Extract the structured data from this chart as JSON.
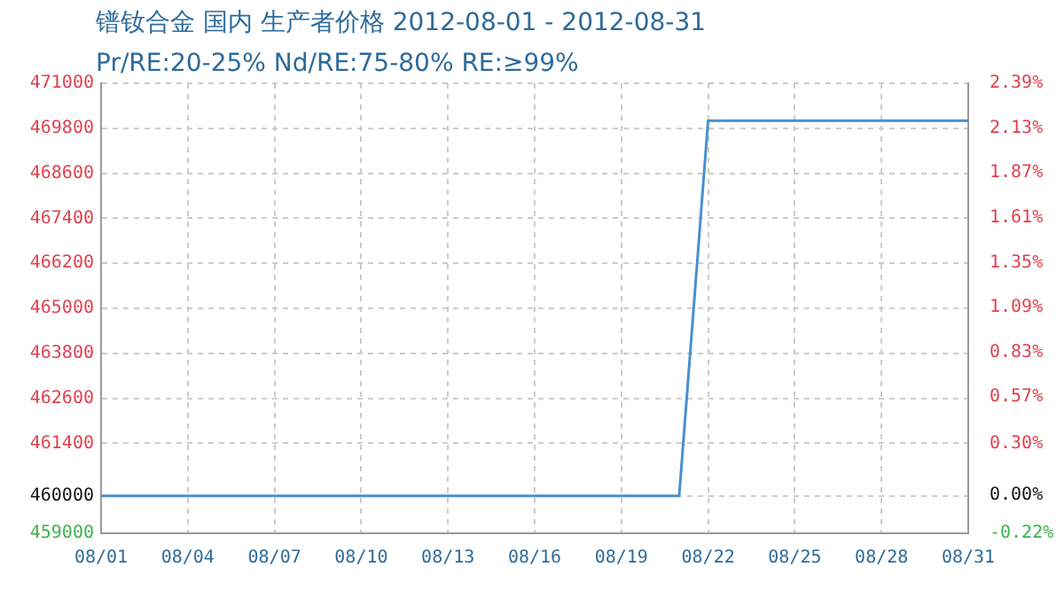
{
  "chart_data": {
    "type": "line",
    "title": "镨钕合金 国内 生产者价格 2012-08-01 - 2012-08-31",
    "subtitle": "Pr/RE:20-25% Nd/RE:75-80% RE:≥99%",
    "x": [
      "2012-08-01",
      "2012-08-21",
      "2012-08-22",
      "2012-08-31"
    ],
    "series": [
      {
        "color": "#4a8fd0",
        "values": [
          460000,
          460000,
          470000,
          470000
        ]
      }
    ],
    "xlim": [
      "2012-08-01",
      "2012-08-31"
    ],
    "xticks": [
      {
        "value": "2012-08-01",
        "label": "08/01"
      },
      {
        "value": "2012-08-04",
        "label": "08/04"
      },
      {
        "value": "2012-08-07",
        "label": "08/07"
      },
      {
        "value": "2012-08-10",
        "label": "08/10"
      },
      {
        "value": "2012-08-13",
        "label": "08/13"
      },
      {
        "value": "2012-08-16",
        "label": "08/16"
      },
      {
        "value": "2012-08-19",
        "label": "08/19"
      },
      {
        "value": "2012-08-22",
        "label": "08/22"
      },
      {
        "value": "2012-08-25",
        "label": "08/25"
      },
      {
        "value": "2012-08-28",
        "label": "08/28"
      },
      {
        "value": "2012-08-31",
        "label": "08/31"
      }
    ],
    "ylim": [
      459000,
      471000
    ],
    "yticks": [
      459000,
      460000,
      461400,
      462600,
      463800,
      465000,
      466200,
      467400,
      468600,
      469800,
      471000
    ],
    "y2lim": [
      -0.22,
      2.39
    ],
    "y2ticks": [
      {
        "value": -0.22,
        "label": "-0.22%"
      },
      {
        "value": 0,
        "label": "0.00%"
      },
      {
        "value": 0.3,
        "label": "0.30%"
      },
      {
        "value": 0.57,
        "label": "0.57%"
      },
      {
        "value": 0.83,
        "label": "0.83%"
      },
      {
        "value": 1.09,
        "label": "1.09%"
      },
      {
        "value": 1.35,
        "label": "1.35%"
      },
      {
        "value": 1.61,
        "label": "1.61%"
      },
      {
        "value": 1.87,
        "label": "1.87%"
      },
      {
        "value": 2.13,
        "label": "2.13%"
      },
      {
        "value": 2.39,
        "label": "2.39%"
      }
    ],
    "grid": true,
    "legend": false,
    "marker": "none",
    "line_style": "solid"
  }
}
